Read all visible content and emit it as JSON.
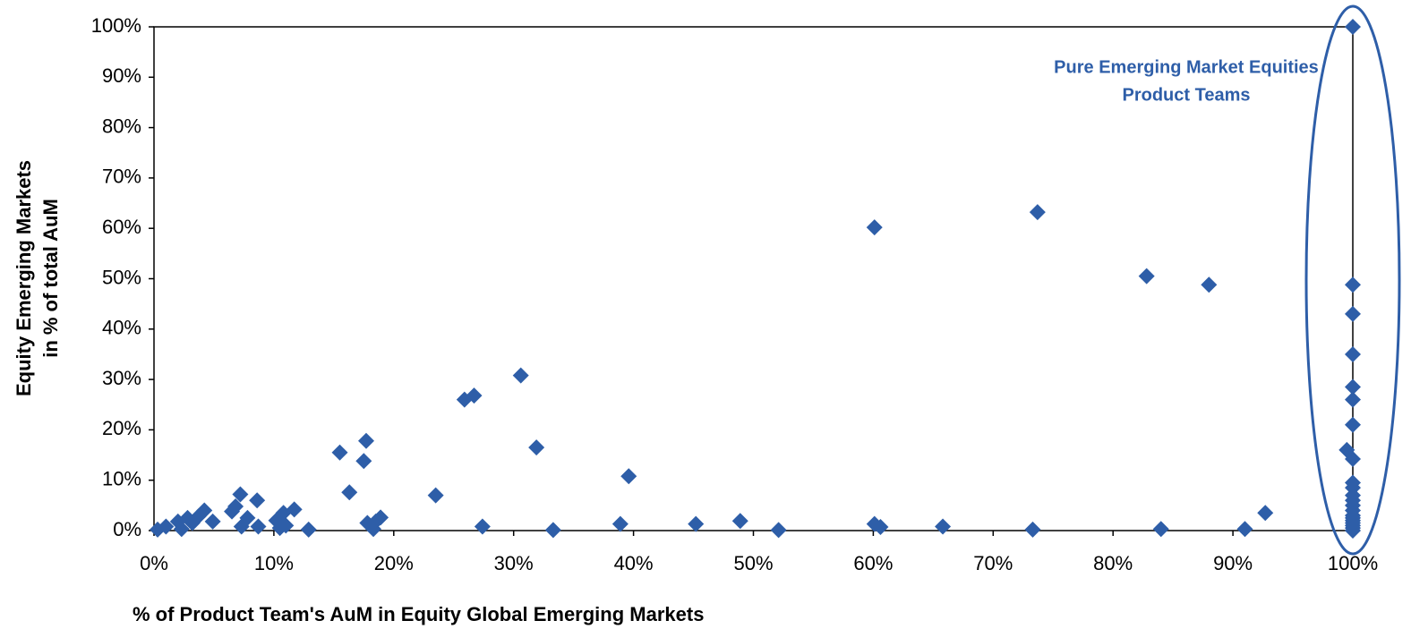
{
  "chart_data": {
    "type": "scatter",
    "xlabel": "% of Product Team's AuM in Equity Global Emerging Markets",
    "ylabel": [
      "Equity Emerging Markets",
      "in % of total AuM"
    ],
    "annotation": [
      "Pure Emerging Market Equities",
      "Product Teams"
    ],
    "color": "#2e5ea8",
    "x": [
      0.3,
      1,
      2,
      2.3,
      2.8,
      3.2,
      3.7,
      4.2,
      4.9,
      6.5,
      6.8,
      7.2,
      7.3,
      7.8,
      8.6,
      8.7,
      10.2,
      10.5,
      10.8,
      11,
      11.7,
      12.9,
      15.5,
      16.3,
      17.5,
      17.7,
      17.8,
      18.3,
      18.5,
      18.9,
      23.5,
      25.9,
      26.7,
      27.4,
      30.6,
      31.9,
      33.3,
      38.9,
      39.6,
      45.2,
      48.9,
      52.1,
      60.1,
      60.1,
      60.6,
      65.8,
      73.7,
      73.3,
      82.8,
      84,
      88,
      91,
      92.7,
      100,
      100,
      100,
      100,
      100,
      100,
      100,
      99.5,
      100,
      100,
      100,
      100,
      100,
      100,
      100,
      100,
      100,
      100,
      100,
      100,
      100,
      100
    ],
    "values": [
      0.2,
      0.8,
      1.8,
      0.3,
      2.5,
      1.5,
      2.8,
      4,
      1.8,
      3.8,
      4.8,
      7.2,
      0.8,
      2.5,
      6,
      0.8,
      2,
      0.5,
      3.5,
      1,
      4.2,
      0.2,
      15.5,
      7.6,
      13.8,
      17.8,
      1.5,
      0.3,
      1.8,
      2.6,
      7,
      26,
      26.8,
      0.8,
      30.8,
      16.5,
      0.1,
      1.3,
      10.8,
      1.3,
      1.9,
      0.1,
      60.2,
      1.3,
      0.7,
      0.8,
      63.2,
      0.2,
      50.5,
      0.3,
      48.8,
      0.3,
      3.5,
      100,
      48.8,
      43,
      35,
      28.5,
      26,
      21,
      16,
      14.2,
      9.5,
      8.5,
      7,
      6,
      5,
      4,
      3,
      2.5,
      2,
      1.5,
      1,
      0.5,
      0
    ],
    "xlim": [
      0,
      100
    ],
    "ylim": [
      0,
      100
    ],
    "xticks": [
      {
        "value": 0,
        "label": "0%"
      },
      {
        "value": 10,
        "label": "10%"
      },
      {
        "value": 20,
        "label": "20%"
      },
      {
        "value": 30,
        "label": "30%"
      },
      {
        "value": 40,
        "label": "40%"
      },
      {
        "value": 50,
        "label": "50%"
      },
      {
        "value": 60,
        "label": "60%"
      },
      {
        "value": 70,
        "label": "70%"
      },
      {
        "value": 80,
        "label": "80%"
      },
      {
        "value": 90,
        "label": "90%"
      },
      {
        "value": 100,
        "label": "100%"
      }
    ],
    "yticks": [
      {
        "value": 0,
        "label": "0%"
      },
      {
        "value": 10,
        "label": "10%"
      },
      {
        "value": 20,
        "label": "20%"
      },
      {
        "value": 30,
        "label": "30%"
      },
      {
        "value": 40,
        "label": "40%"
      },
      {
        "value": 50,
        "label": "50%"
      },
      {
        "value": 60,
        "label": "60%"
      },
      {
        "value": 70,
        "label": "70%"
      },
      {
        "value": 80,
        "label": "80%"
      },
      {
        "value": 90,
        "label": "90%"
      },
      {
        "value": 100,
        "label": "100%"
      }
    ],
    "grid": false
  }
}
